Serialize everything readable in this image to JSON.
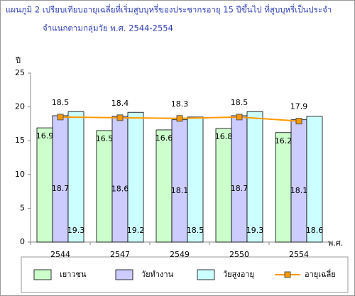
{
  "chart_data": {
    "type": "bar",
    "title": "แผนภูมิ 2 เปรียบเทียบอายุเฉลี่ยที่เริ่มสูบบุหรี่ของประชากรอายุ 15 ปีขึ้นไป ที่สูบบุหรี่เป็นประจำ",
    "subtitle": "จำแนกตามกลุ่มวัย พ.ศ. 2544-2554",
    "y_label": "ปี",
    "x_label": "พ.ศ.",
    "categories": [
      "2544",
      "2547",
      "2549",
      "2550",
      "2554"
    ],
    "series": [
      {
        "name": "เยาวชน",
        "color": "#ccffcc",
        "values": [
          16.9,
          16.5,
          16.6,
          16.8,
          16.2
        ]
      },
      {
        "name": "วัยทำงาน",
        "color": "#ccccff",
        "values": [
          18.7,
          18.6,
          18.1,
          18.7,
          18.1
        ]
      },
      {
        "name": "วัยสูงอายุ",
        "color": "#ccffff",
        "values": [
          19.3,
          19.2,
          18.5,
          19.3,
          18.6
        ]
      },
      {
        "name": "อายุเฉลี่ย",
        "color": "#ff9900",
        "type": "line",
        "values": [
          18.5,
          18.4,
          18.3,
          18.5,
          17.9
        ]
      }
    ],
    "ylim": [
      0,
      25
    ],
    "yticks": [
      0,
      5,
      10,
      15,
      20,
      25
    ],
    "grid": false,
    "legend": "bottom"
  }
}
